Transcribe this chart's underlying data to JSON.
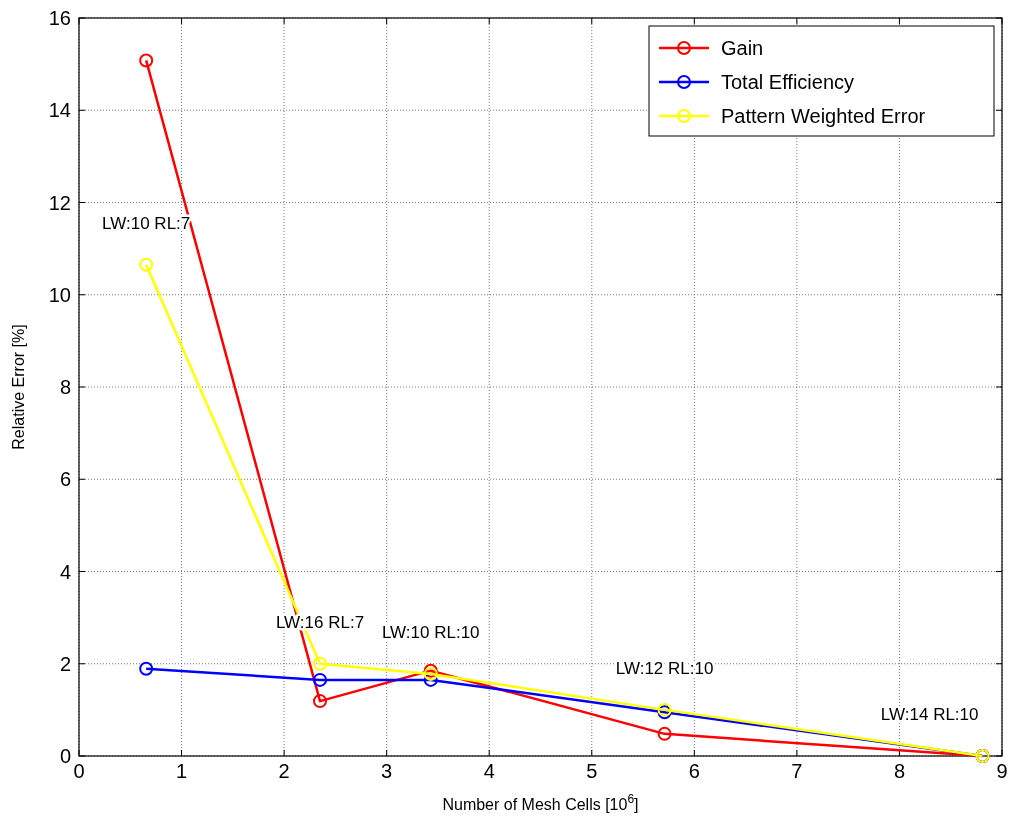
{
  "chart_data": {
    "type": "line",
    "xlabel": "Number of Mesh Cells [10$^{6}$]",
    "ylabel": "Relative Error [%]",
    "x": [
      0.655,
      2.35,
      3.43,
      5.71,
      8.81
    ],
    "series": [
      {
        "name": "Gain",
        "color": "#ff0000",
        "values": [
          15.08,
          1.19,
          1.85,
          0.48,
          0
        ]
      },
      {
        "name": "Total Efficiency",
        "color": "#0000ff",
        "values": [
          1.89,
          1.65,
          1.65,
          0.95,
          0
        ]
      },
      {
        "name": "Pattern Weighted Error",
        "color": "#ffff00",
        "values": [
          10.65,
          2.0,
          1.78,
          1.0,
          0
        ]
      }
    ],
    "xlim": [
      0,
      9
    ],
    "xticks": [
      0,
      1,
      2,
      3,
      4,
      5,
      6,
      7,
      8,
      9
    ],
    "ylim": [
      0,
      16
    ],
    "yticks": [
      0,
      2,
      4,
      6,
      8,
      10,
      12,
      14,
      16
    ],
    "grid": true,
    "legend": "top right",
    "marker": "circle",
    "line_style": "solid",
    "annotations": [
      {
        "text": "LW:10 RL:7",
        "x": 0.655,
        "y": 10.65
      },
      {
        "text": "LW:16 RL:7",
        "x": 2.35,
        "y": 2.0
      },
      {
        "text": "LW:10 RL:10",
        "x": 3.43,
        "y": 1.78
      },
      {
        "text": "LW:12 RL:10",
        "x": 5.71,
        "y": 1.0
      },
      {
        "text": "LW:14 RL:10",
        "x": 8.81,
        "y": 0
      }
    ]
  }
}
